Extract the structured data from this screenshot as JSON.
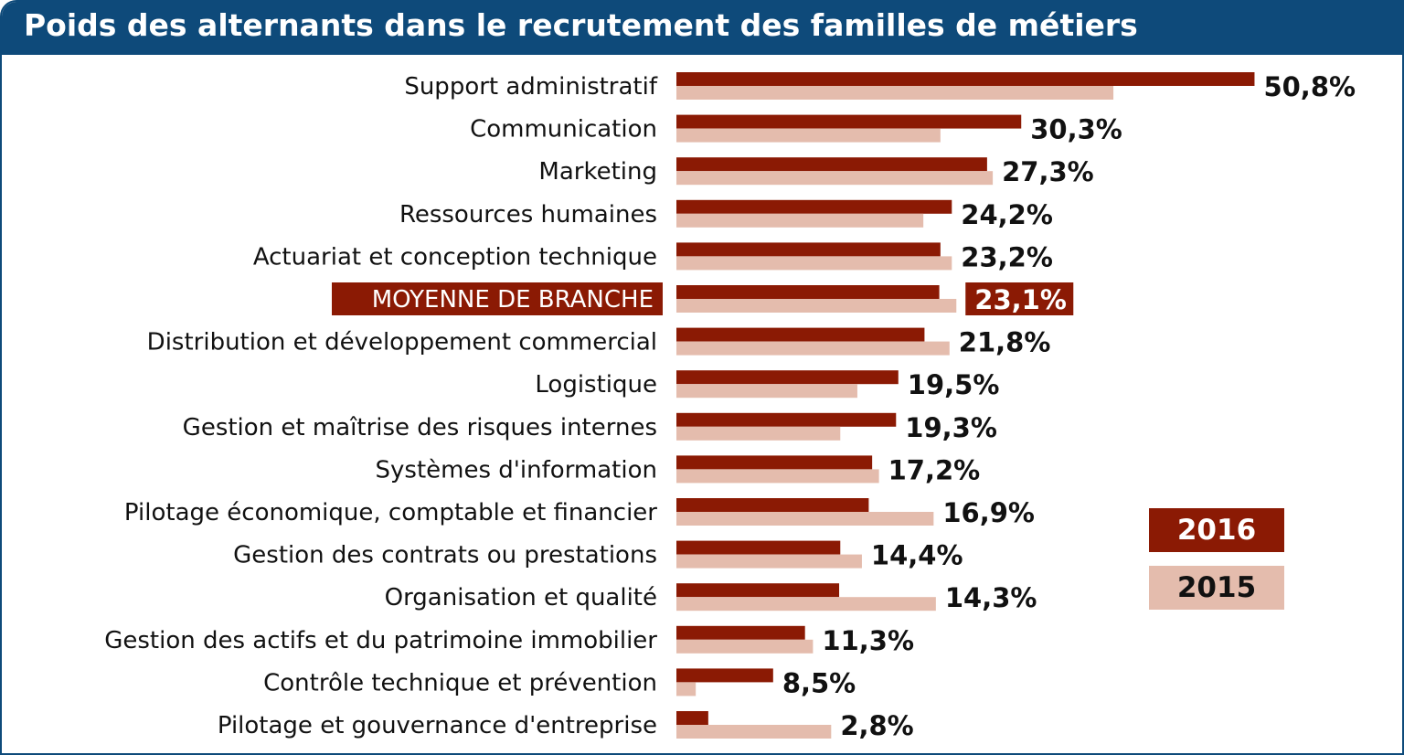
{
  "title": "Poids des alternants dans le recrutement des familles de métiers",
  "legend": [
    {
      "label": "2016",
      "color": "#8b1a04",
      "text_color": "#ffffff"
    },
    {
      "label": "2015",
      "color": "#e4bcad",
      "text_color": "#111111"
    }
  ],
  "chart_data": {
    "type": "bar",
    "orientation": "horizontal",
    "title": "Poids des alternants dans le recrutement des familles de métiers",
    "xlim": [
      0,
      60
    ],
    "grid": false,
    "legend_position": "bottom-right",
    "highlighted_category": "MOYENNE  DE BRANCHE",
    "categories": [
      "Support administratif",
      "Communication",
      "Marketing",
      "Ressources humaines",
      "Actuariat et conception  technique",
      "MOYENNE  DE BRANCHE",
      "Distribution  et développement commercial",
      "Logistique",
      "Gestion  et maîtrise des risques internes",
      "Systèmes d'information",
      "Pilotage  économique, comptable et financier",
      "Gestion  des contrats ou prestations",
      "Organisation et qualité",
      "Gestion  des actifs et du patrimoine immobilier",
      "Contrôle  technique et prévention",
      "Pilotage  et gouvernance  d'entreprise"
    ],
    "value_labels": [
      "50,8%",
      "30,3%",
      "27,3%",
      "24,2%",
      "23,2%",
      "23,1%",
      "21,8%",
      "19,5%",
      "19,3%",
      "17,2%",
      "16,9%",
      "14,4%",
      "14,3%",
      "11,3%",
      "8,5%",
      "2,8%"
    ],
    "series": [
      {
        "name": "2016",
        "color": "#8b1a04",
        "values": [
          50.8,
          30.3,
          27.3,
          24.2,
          23.2,
          23.1,
          21.8,
          19.5,
          19.3,
          17.2,
          16.9,
          14.4,
          14.3,
          11.3,
          8.5,
          2.8
        ]
      },
      {
        "name": "2015",
        "color": "#e4bcad",
        "values": [
          38.4,
          23.2,
          27.8,
          21.7,
          24.2,
          24.6,
          24.0,
          15.9,
          14.4,
          17.8,
          22.6,
          16.3,
          22.8,
          12.0,
          1.7,
          13.6
        ]
      }
    ]
  }
}
